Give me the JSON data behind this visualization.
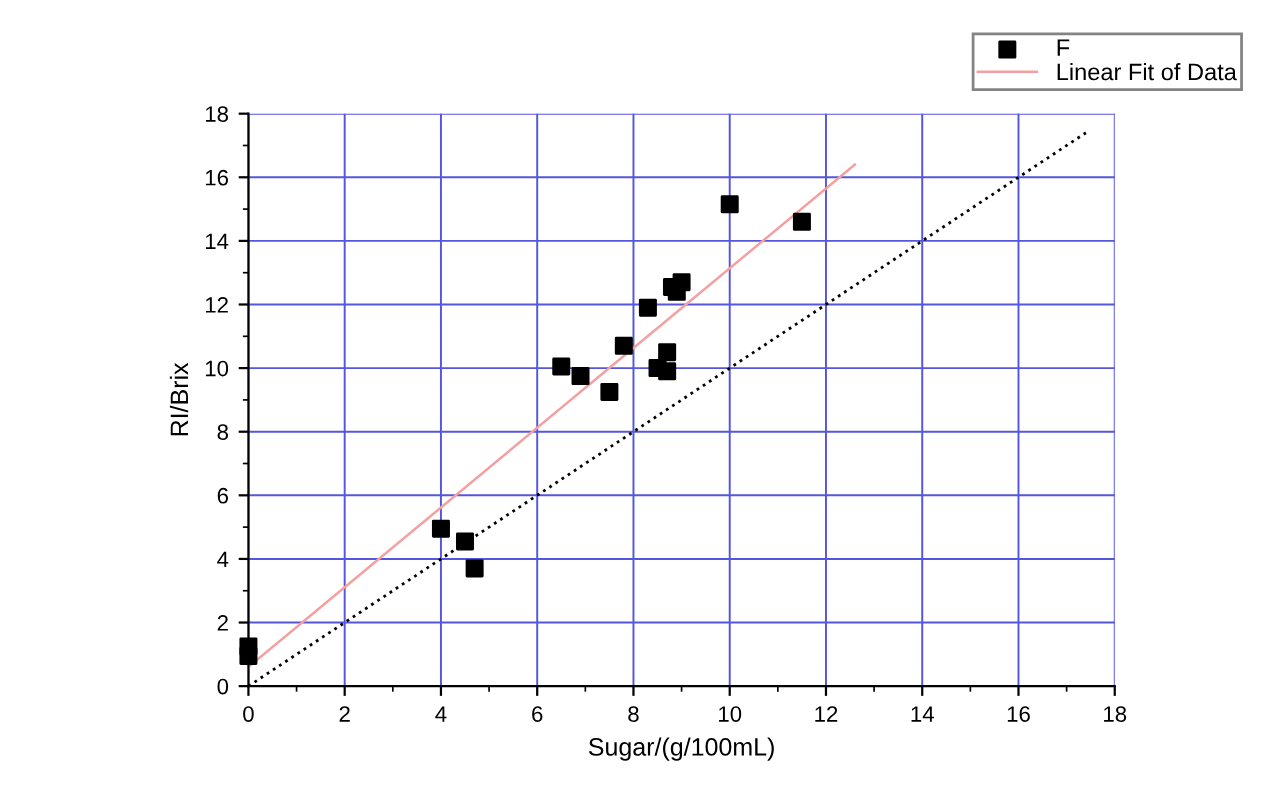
{
  "chart_data": {
    "type": "scatter",
    "xlabel": "Sugar/(g/100mL)",
    "ylabel": "RI/Brix",
    "xlim": [
      0,
      18
    ],
    "ylim": [
      0,
      18
    ],
    "xticks": [
      0,
      2,
      4,
      6,
      8,
      10,
      12,
      14,
      16,
      18
    ],
    "yticks": [
      0,
      2,
      4,
      6,
      8,
      10,
      12,
      14,
      16,
      18
    ],
    "grid": true,
    "legend": "top right",
    "marker": "square",
    "series": [
      {
        "name": "F",
        "color": "#000000",
        "x": [
          0,
          0,
          4.0,
          4.5,
          4.7,
          6.5,
          6.9,
          7.5,
          7.8,
          8.3,
          8.5,
          8.7,
          8.7,
          8.8,
          8.9,
          9.0,
          10.0,
          11.5
        ],
        "values": [
          0.95,
          1.25,
          4.95,
          4.55,
          3.7,
          10.05,
          9.75,
          9.25,
          10.7,
          11.9,
          10.0,
          10.5,
          9.9,
          12.55,
          12.4,
          12.7,
          15.15,
          14.6
        ]
      },
      {
        "name": "Linear Fit of Data",
        "color": "#f4a0a0",
        "type": "line",
        "marker": "none",
        "line_style": "solid",
        "x": [
          0,
          12.6
        ],
        "values": [
          0.6,
          16.4
        ]
      },
      {
        "color": "#000000",
        "type": "line",
        "marker": "none",
        "line_style": "dotted",
        "x": [
          0,
          17.4
        ],
        "values": [
          0,
          17.4
        ]
      }
    ]
  }
}
